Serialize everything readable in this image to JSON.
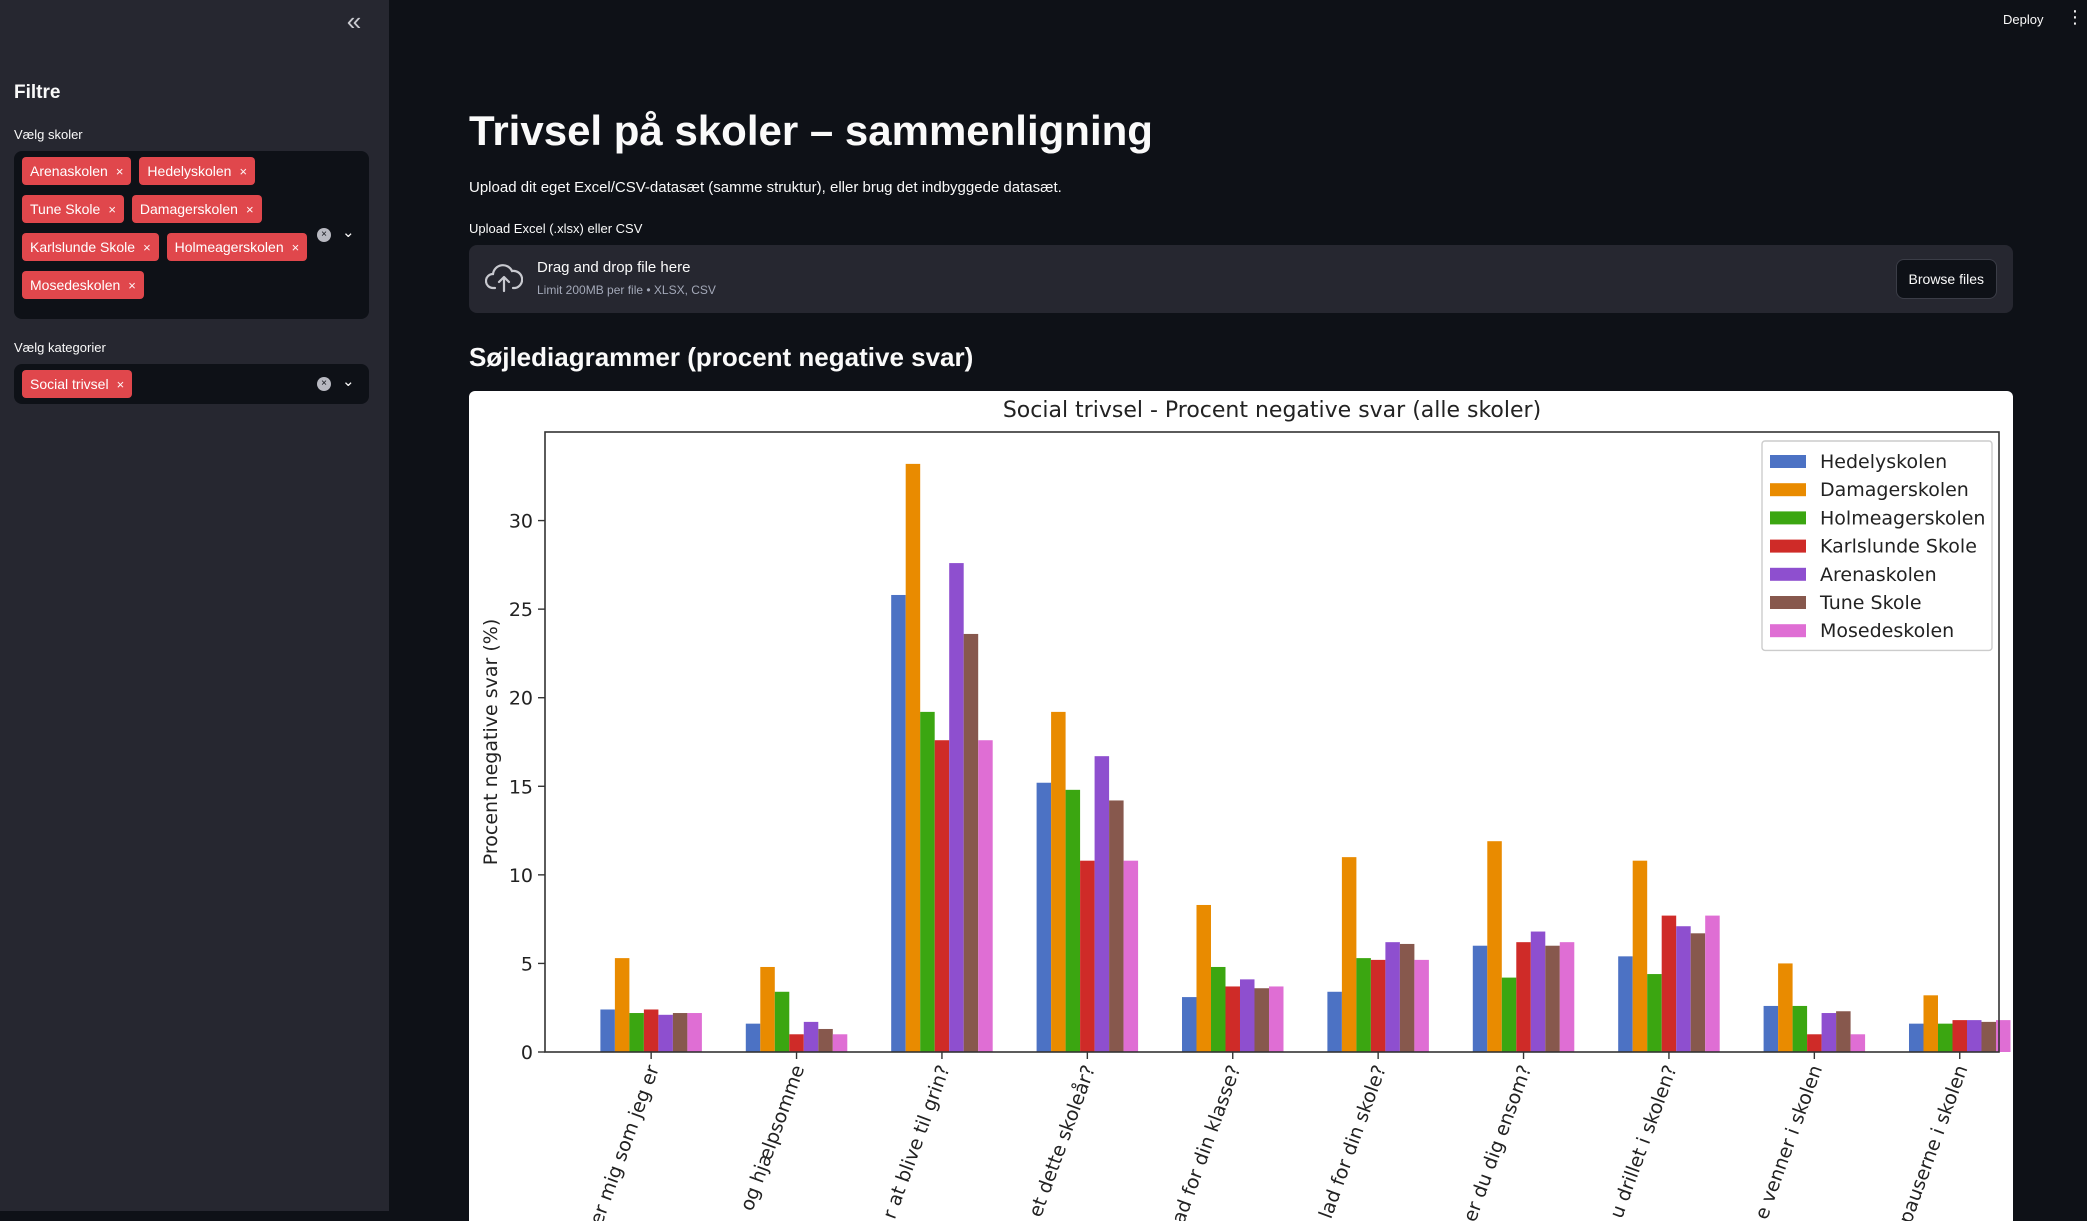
{
  "sidebar": {
    "collapse_icon": "«",
    "title": "Filtre",
    "schools_label": "Vælg skoler",
    "selected_schools": [
      "Arenaskolen",
      "Hedelyskolen",
      "Tune Skole",
      "Damagerskolen",
      "Karlslunde Skole",
      "Holmeagerskolen",
      "Mosedeskolen"
    ],
    "categories_label": "Vælg kategorier",
    "selected_categories": [
      "Social trivsel"
    ],
    "tag_remove_icon": "×",
    "clear_icon": "×",
    "dropdown_icon": "⌄"
  },
  "header": {
    "deploy_label": "Deploy",
    "menu_icon": "⋮"
  },
  "main": {
    "title": "Trivsel på skoler – sammenligning",
    "intro": "Upload dit eget Excel/CSV-datasæt (samme struktur), eller brug det indbyggede datasæt.",
    "upload_label": "Upload Excel (.xlsx) eller CSV",
    "dropzone_title": "Drag and drop file here",
    "dropzone_sub": "Limit 200MB per file • XLSX, CSV",
    "browse_label": "Browse files",
    "section_title": "Søjlediagrammer (procent negative svar)"
  },
  "chart_data": {
    "type": "bar",
    "title": "Social trivsel - Procent negative svar (alle skoler)",
    "ylabel": "Procent negative svar (%)",
    "xlabel": "",
    "ylim": [
      0,
      35
    ],
    "yticks": [
      0,
      5,
      10,
      15,
      20,
      25,
      30
    ],
    "legend_position": "top-right",
    "categories": [
      "er mig som jeg er",
      "og hjælpsomme",
      "r at blive til grin?",
      "et dette skoleår?",
      "ad for din klasse?",
      "lad for din skole?",
      "er du dig ensom?",
      "u drillet i skolen?",
      "e venner i skolen",
      "pauserne i skolen"
    ],
    "series": [
      {
        "name": "Hedelyskolen",
        "color": "#4c72c4",
        "values": [
          2.4,
          1.6,
          25.8,
          15.2,
          3.1,
          3.4,
          6.0,
          5.4,
          2.6,
          1.6
        ]
      },
      {
        "name": "Damagerskolen",
        "color": "#e98b00",
        "values": [
          5.3,
          4.8,
          33.2,
          19.2,
          8.3,
          11.0,
          11.9,
          10.8,
          5.0,
          3.2
        ]
      },
      {
        "name": "Holmeagerskolen",
        "color": "#3ba611",
        "values": [
          2.2,
          3.4,
          19.2,
          14.8,
          4.8,
          5.3,
          4.2,
          4.4,
          2.6,
          1.6
        ]
      },
      {
        "name": "Karlslunde Skole",
        "color": "#cf2b28",
        "values": [
          2.4,
          1.0,
          17.6,
          10.8,
          3.7,
          5.2,
          6.2,
          7.7,
          1.0,
          1.8
        ]
      },
      {
        "name": "Arenaskolen",
        "color": "#8e4fcf",
        "values": [
          2.1,
          1.7,
          27.6,
          16.7,
          4.1,
          6.2,
          6.8,
          7.1,
          2.2,
          1.8
        ]
      },
      {
        "name": "Tune Skole",
        "color": "#87584d",
        "values": [
          2.2,
          1.3,
          23.6,
          14.2,
          3.6,
          6.1,
          6.0,
          6.7,
          2.3,
          1.7
        ]
      },
      {
        "name": "Mosedeskolen",
        "color": "#df6ed4",
        "values": [
          2.2,
          1.0,
          17.6,
          10.8,
          3.7,
          5.2,
          6.2,
          7.7,
          1.0,
          1.8
        ]
      }
    ]
  }
}
